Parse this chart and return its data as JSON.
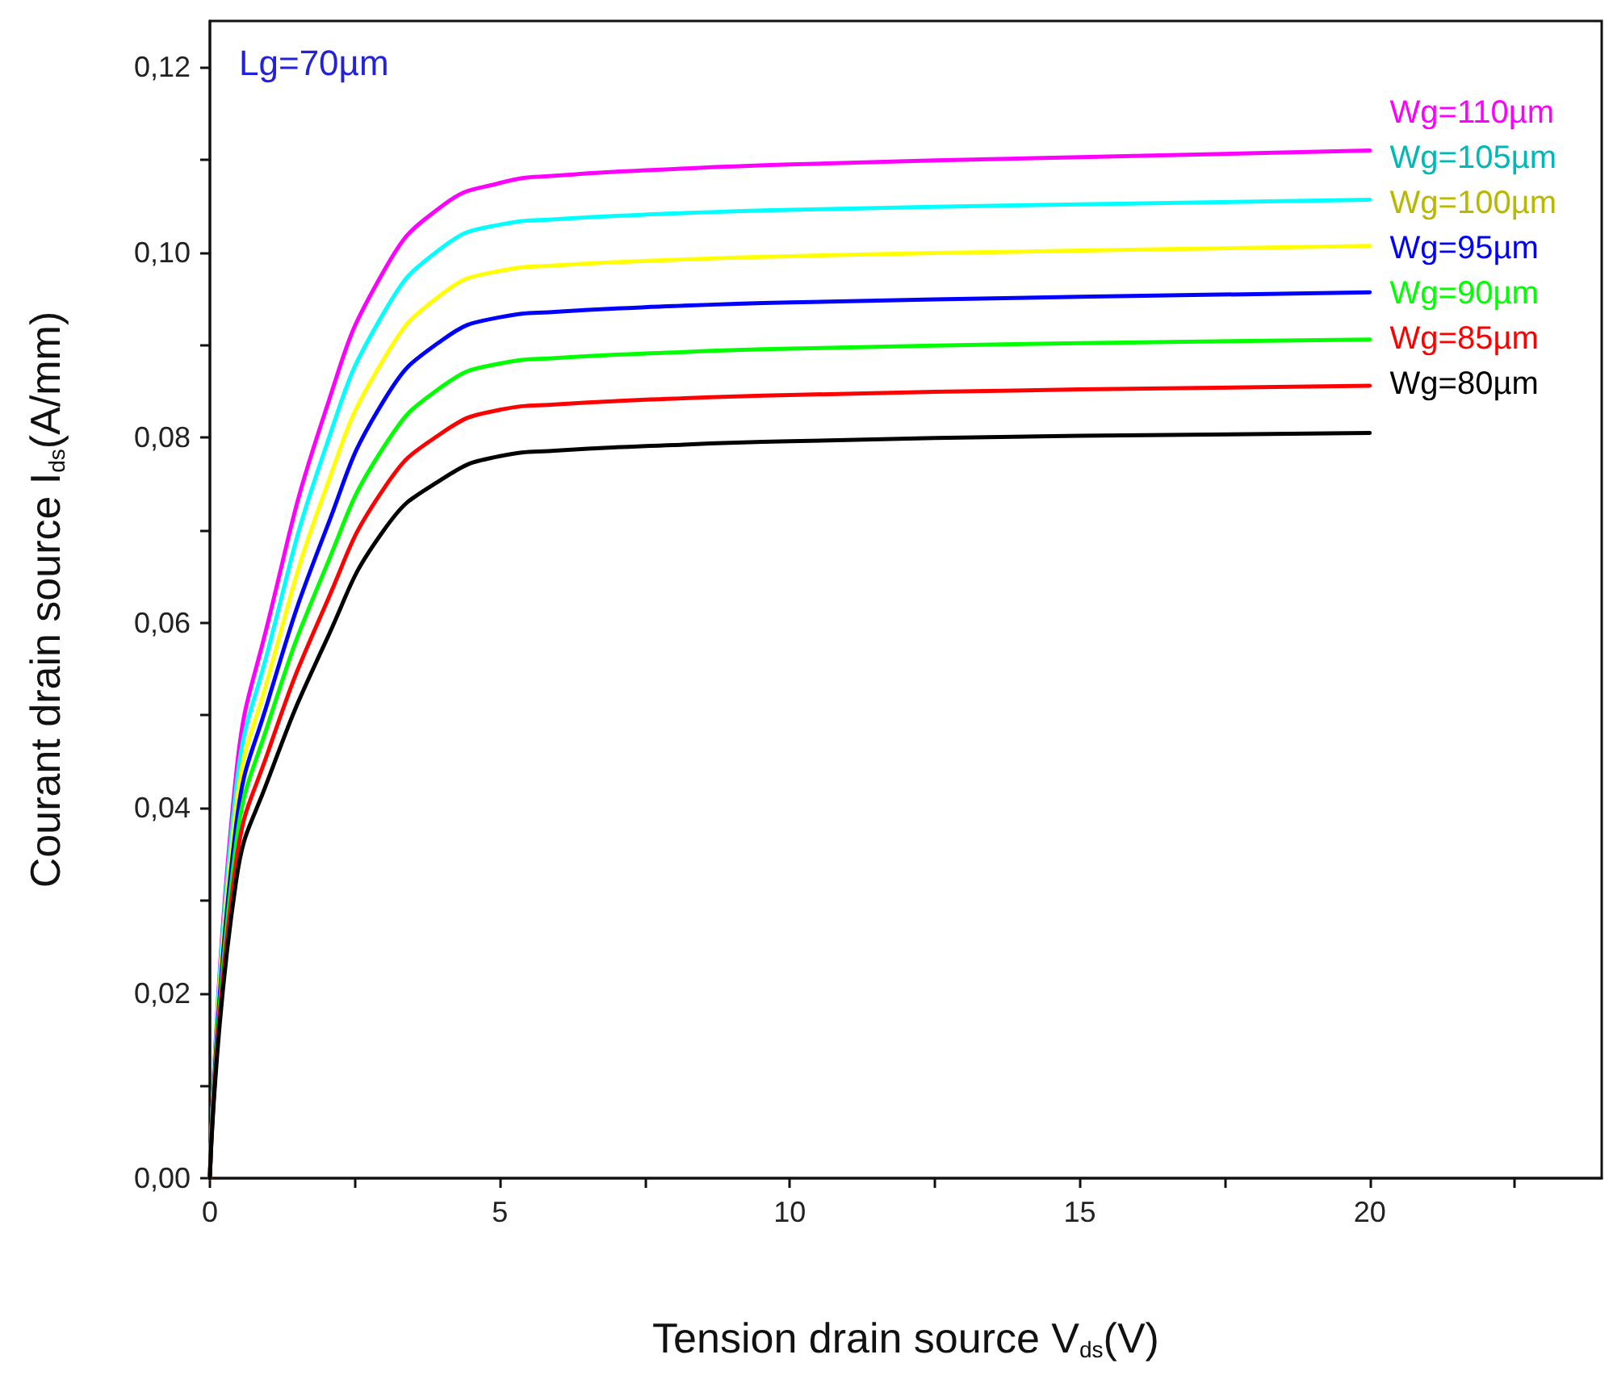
{
  "chart_data": {
    "type": "line",
    "xlabel": "Tension drain source V$_{ds}$(V)",
    "ylabel": "Courant drain source I$_{ds}$(A/mm)",
    "annotations": [
      "Lg=70µm"
    ],
    "x": [
      0,
      0.45,
      1,
      2,
      3,
      4,
      5,
      6,
      8,
      10,
      15,
      20
    ],
    "series": [
      {
        "name": "Wg=110µm",
        "color": "#ff00ff",
        "values": [
          0,
          0.0435,
          0.06,
          0.083,
          0.098,
          0.105,
          0.1075,
          0.1083,
          0.109,
          0.1095,
          0.1103,
          0.111
        ]
      },
      {
        "name": "Wg=105µm",
        "color": "#00ffff",
        "values": [
          0,
          0.042,
          0.057,
          0.079,
          0.0935,
          0.1005,
          0.103,
          0.1036,
          0.1042,
          0.1046,
          0.1052,
          0.1057
        ]
      },
      {
        "name": "Wg=100µm",
        "color": "#ffff00",
        "values": [
          0,
          0.04,
          0.054,
          0.0745,
          0.0885,
          0.0955,
          0.098,
          0.0986,
          0.0992,
          0.0996,
          0.1002,
          0.1007
        ]
      },
      {
        "name": "Wg=95µm",
        "color": "#0000ff",
        "values": [
          0,
          0.038,
          0.0515,
          0.07,
          0.084,
          0.0905,
          0.093,
          0.0936,
          0.0942,
          0.0946,
          0.0952,
          0.0957
        ]
      },
      {
        "name": "Wg=90µm",
        "color": "#00ff00",
        "values": [
          0,
          0.036,
          0.049,
          0.066,
          0.079,
          0.0855,
          0.088,
          0.0886,
          0.0892,
          0.0896,
          0.0902,
          0.0906
        ]
      },
      {
        "name": "Wg=85µm",
        "color": "#ff0000",
        "values": [
          0,
          0.034,
          0.046,
          0.062,
          0.0745,
          0.0805,
          0.083,
          0.0836,
          0.0842,
          0.0846,
          0.0852,
          0.0856
        ]
      },
      {
        "name": "Wg=80µm",
        "color": "#000000",
        "values": [
          0,
          0.032,
          0.043,
          0.058,
          0.07,
          0.0755,
          0.078,
          0.0786,
          0.0792,
          0.0796,
          0.0802,
          0.0805
        ]
      }
    ],
    "xlim": [
      0,
      24
    ],
    "xticks": [
      0,
      {
        "value": 2.5,
        "label": null
      },
      5,
      {
        "value": 7.5,
        "label": null
      },
      10,
      {
        "value": 12.5,
        "label": null
      },
      15,
      {
        "value": 17.5,
        "label": null
      },
      20,
      {
        "value": 22.5,
        "label": null
      }
    ],
    "ylim": [
      0,
      0.125
    ],
    "yticks": [
      {
        "value": 0,
        "label": "0,00"
      },
      {
        "value": 0.01,
        "label": null
      },
      {
        "value": 0.02,
        "label": "0,02"
      },
      {
        "value": 0.03,
        "label": null
      },
      {
        "value": 0.04,
        "label": "0,04"
      },
      {
        "value": 0.05,
        "label": null
      },
      {
        "value": 0.06,
        "label": "0,06"
      },
      {
        "value": 0.07,
        "label": null
      },
      {
        "value": 0.08,
        "label": "0,08"
      },
      {
        "value": 0.09,
        "label": null
      },
      {
        "value": 0.1,
        "label": "0,10"
      },
      {
        "value": 0.11,
        "label": null
      },
      {
        "value": 0.12,
        "label": "0,12"
      }
    ],
    "legend": "top right",
    "grid": false,
    "marker": "none",
    "line_style": "solid"
  }
}
